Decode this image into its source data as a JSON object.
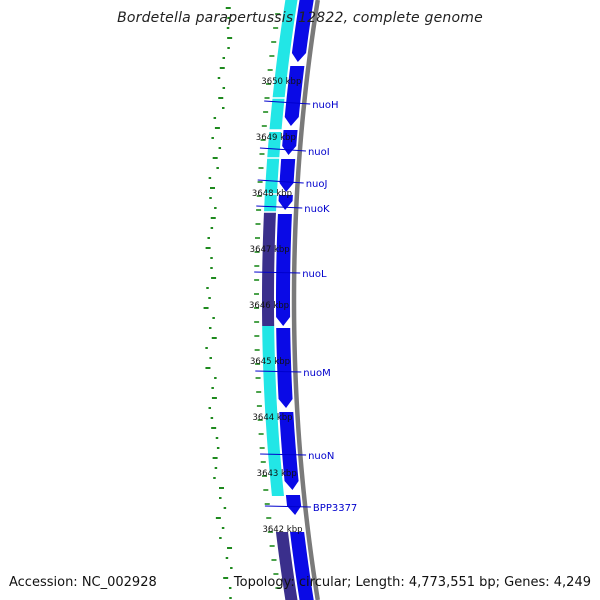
{
  "title": "Bordetella parapertussis 12822, complete genome",
  "footer": {
    "accession": "Accession: NC_002928",
    "stats": "Topology: circular; Length: 4,773,551 bp; Genes: 4,249"
  },
  "colors": {
    "backbone": "#7a7a7a",
    "forward_gene": "#0a0ae6",
    "feature_cyan": "#22e6e6",
    "feature_purple": "#3a2f8c",
    "gc_dots": "#1e8a1e",
    "label_line": "#0000cc"
  },
  "tick_labels": [
    "3650 kbp",
    "3649 kbp",
    "3648 kbp",
    "3647 kbp",
    "3646 kbp",
    "3645 kbp",
    "3644 kbp",
    "3643 kbp",
    "3642 kbp"
  ],
  "gene_labels": [
    "nuoH",
    "nuoI",
    "nuoJ",
    "nuoK",
    "nuoL",
    "nuoM",
    "nuoN",
    "BPP3377"
  ]
}
